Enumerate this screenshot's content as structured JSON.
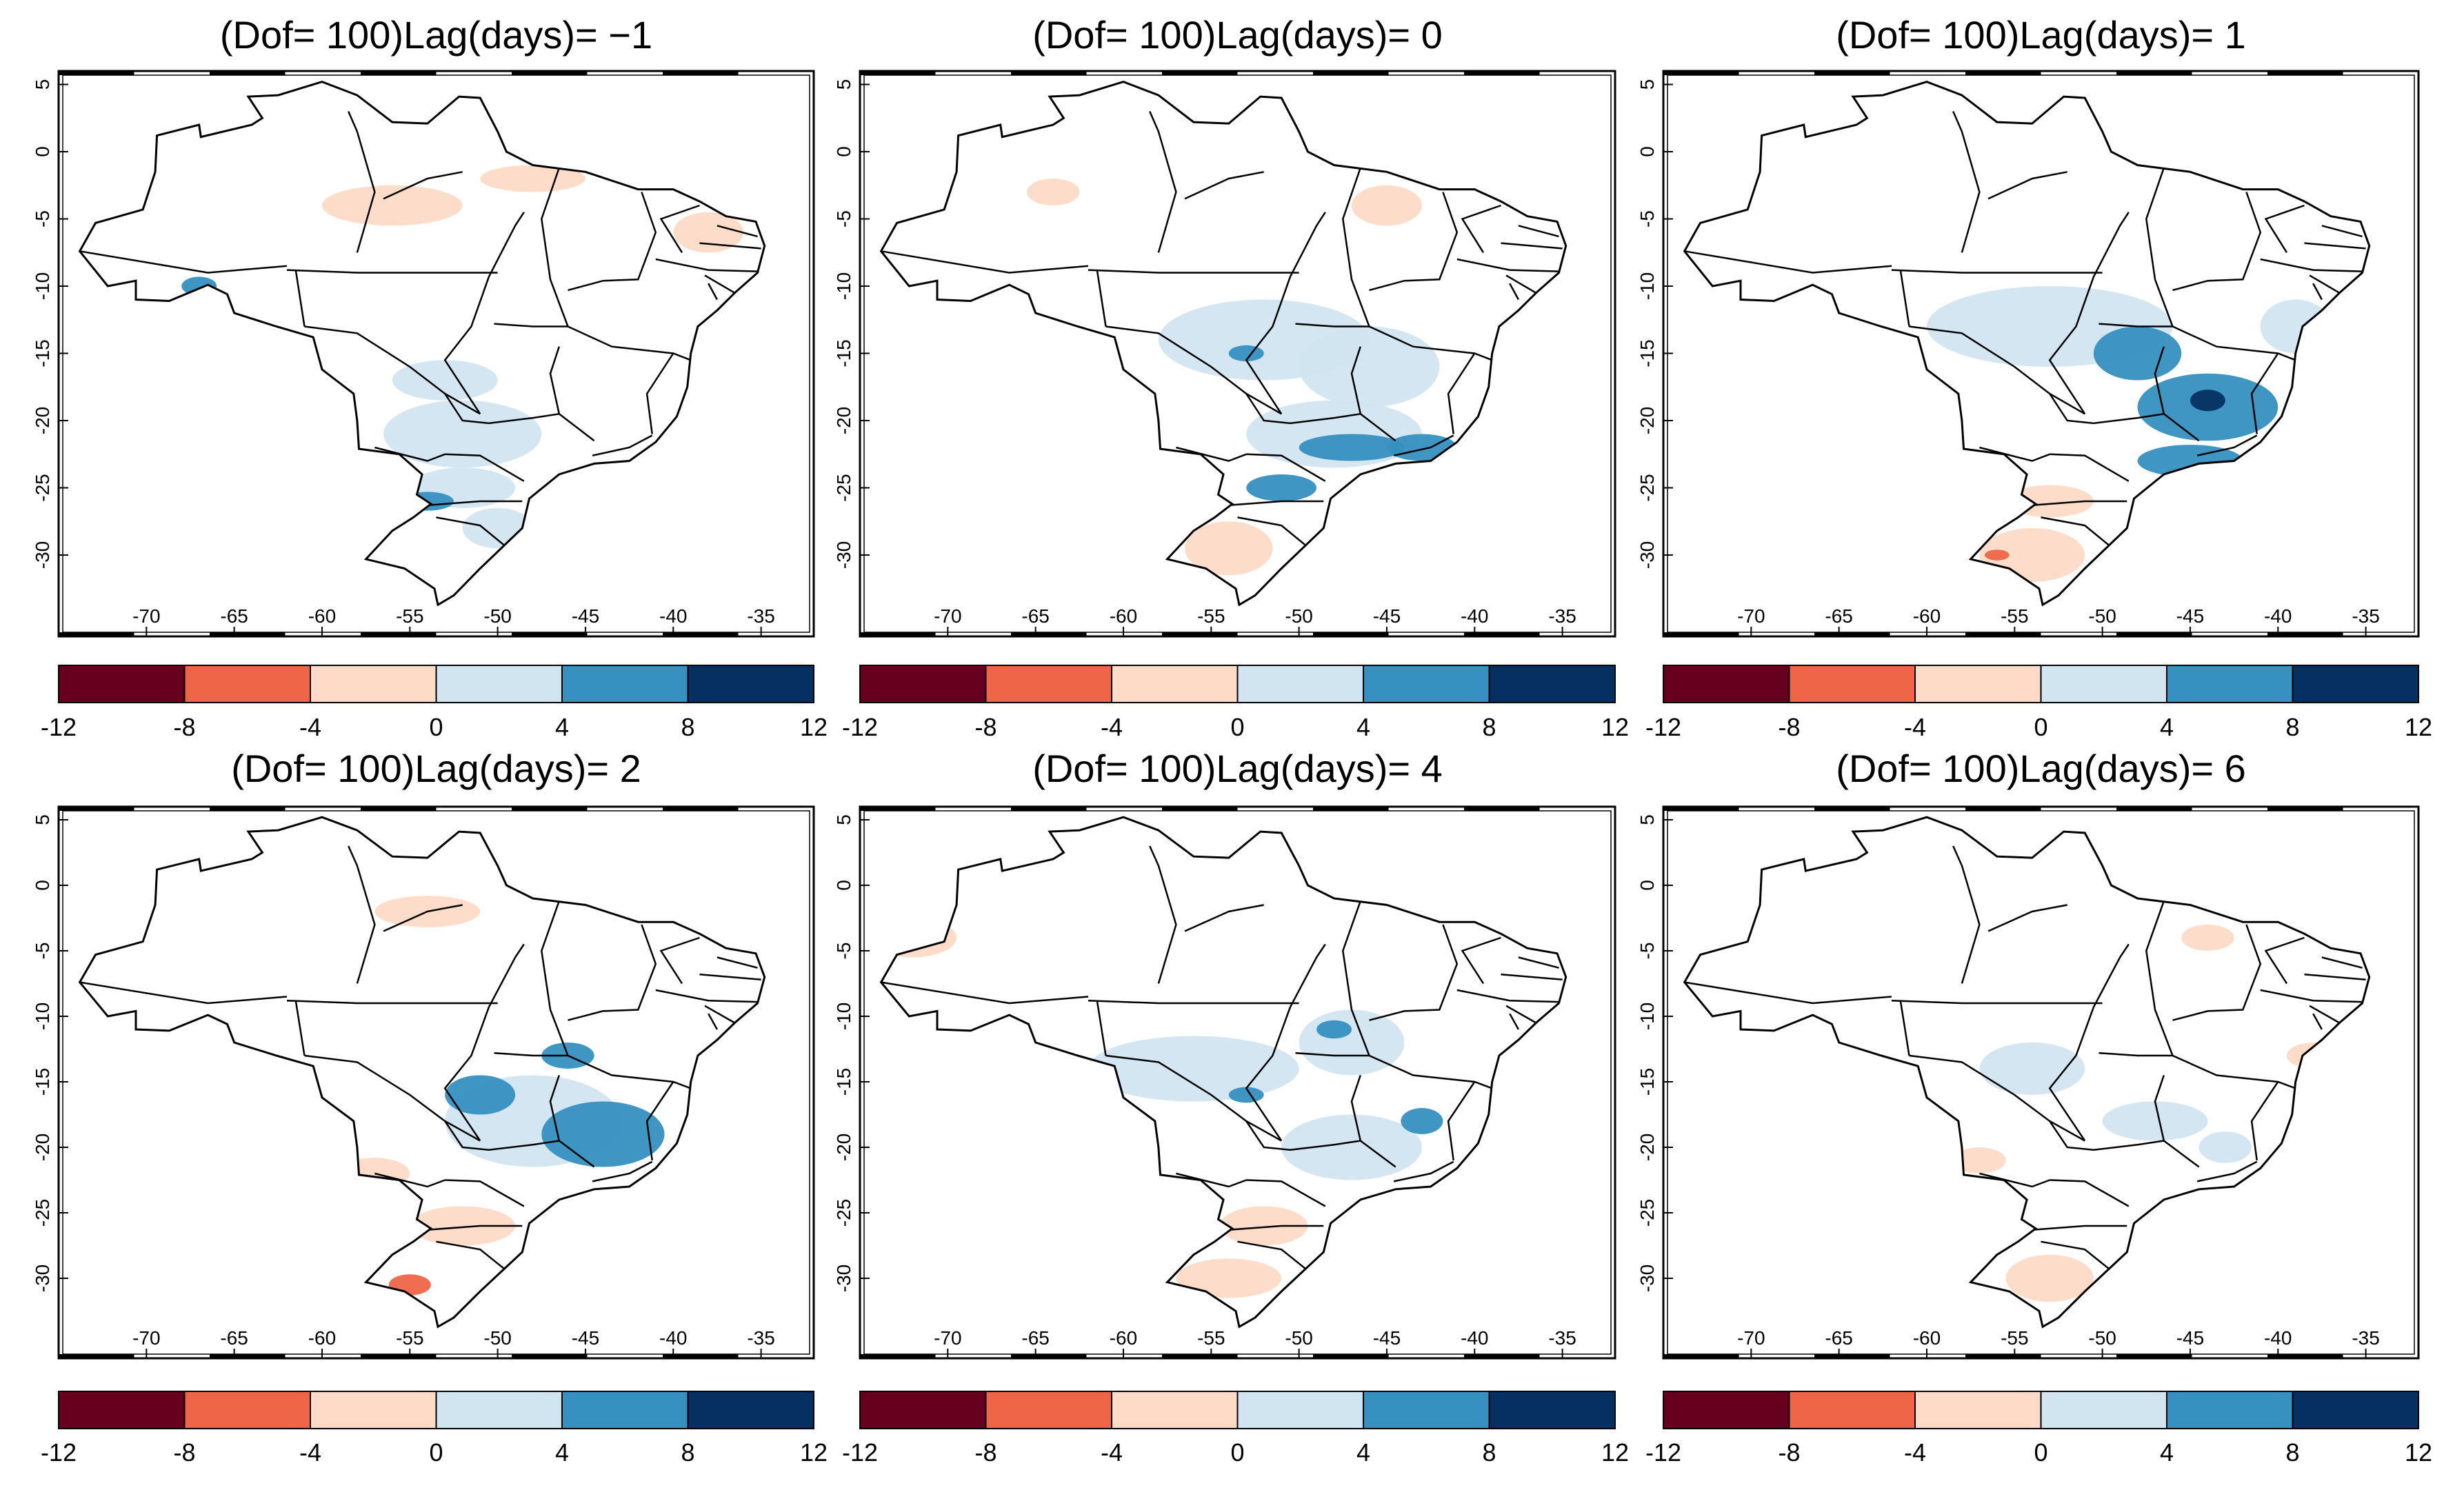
{
  "figure": {
    "panels": [
      {
        "title": "(Dof= 100)Lag(days)= −1",
        "lag": -1
      },
      {
        "title": "(Dof= 100)Lag(days)= 0",
        "lag": 0
      },
      {
        "title": "(Dof= 100)Lag(days)= 1",
        "lag": 1
      },
      {
        "title": "(Dof= 100)Lag(days)= 2",
        "lag": 2
      },
      {
        "title": "(Dof= 100)Lag(days)= 4",
        "lag": 4
      },
      {
        "title": "(Dof= 100)Lag(days)= 6",
        "lag": 6
      }
    ],
    "x_ticks": [
      "-70",
      "-65",
      "-60",
      "-55",
      "-50",
      "-45",
      "-40",
      "-35"
    ],
    "y_ticks": [
      "5",
      "0",
      "-5",
      "-10",
      "-15",
      "-20",
      "-25",
      "-30"
    ],
    "colorbar": {
      "ticks": [
        "-12",
        "-8",
        "-4",
        "0",
        "4",
        "8",
        "12"
      ],
      "colors": [
        "#67001f",
        "#ef6548",
        "#fddbc7",
        "#d1e5f0",
        "#3690c0",
        "#053061"
      ]
    }
  },
  "chart_data": {
    "type": "heatmap",
    "map_region": "Brazil",
    "lon_range": [
      -75,
      -32
    ],
    "lat_range": [
      -34,
      6
    ],
    "color_levels": [
      -12,
      -8,
      -4,
      0,
      4,
      8,
      12
    ],
    "panels": [
      {
        "lag": -1,
        "anomalies": [
          {
            "lon": -56,
            "lat": -4,
            "rx": 4,
            "ry": 1.5,
            "level": -2
          },
          {
            "lon": -48,
            "lat": -2,
            "rx": 3,
            "ry": 1,
            "level": -2
          },
          {
            "lon": -38,
            "lat": -6,
            "rx": 2,
            "ry": 1.5,
            "level": -2
          },
          {
            "lon": -67,
            "lat": -10,
            "rx": 1,
            "ry": 0.7,
            "level": 6
          },
          {
            "lon": -52,
            "lat": -21,
            "rx": 4.5,
            "ry": 2.5,
            "level": 2
          },
          {
            "lon": -53,
            "lat": -17,
            "rx": 3,
            "ry": 1.5,
            "level": 2
          },
          {
            "lon": -52,
            "lat": -25,
            "rx": 3,
            "ry": 1.5,
            "level": 2
          },
          {
            "lon": -54,
            "lat": -26,
            "rx": 1.5,
            "ry": 0.7,
            "level": 6
          },
          {
            "lon": -50,
            "lat": -28,
            "rx": 2,
            "ry": 1.5,
            "level": 2
          }
        ]
      },
      {
        "lag": 0,
        "anomalies": [
          {
            "lon": -45,
            "lat": -4,
            "rx": 2,
            "ry": 1.5,
            "level": -2
          },
          {
            "lon": -64,
            "lat": -3,
            "rx": 1.5,
            "ry": 1,
            "level": -2
          },
          {
            "lon": -52,
            "lat": -14,
            "rx": 6,
            "ry": 3,
            "level": 2
          },
          {
            "lon": -46,
            "lat": -16,
            "rx": 4,
            "ry": 3,
            "level": 2
          },
          {
            "lon": -53,
            "lat": -15,
            "rx": 1,
            "ry": 0.6,
            "level": 6
          },
          {
            "lon": -48,
            "lat": -21,
            "rx": 5,
            "ry": 2.5,
            "level": 2
          },
          {
            "lon": -47,
            "lat": -22,
            "rx": 3,
            "ry": 1,
            "level": 6
          },
          {
            "lon": -43,
            "lat": -22,
            "rx": 2,
            "ry": 1,
            "level": 6
          },
          {
            "lon": -51,
            "lat": -25,
            "rx": 2,
            "ry": 1,
            "level": 6
          },
          {
            "lon": -54,
            "lat": -29.5,
            "rx": 2.5,
            "ry": 2,
            "level": -2
          }
        ]
      },
      {
        "lag": 1,
        "anomalies": [
          {
            "lon": -53,
            "lat": -13,
            "rx": 7,
            "ry": 3,
            "level": 2
          },
          {
            "lon": -48,
            "lat": -15,
            "rx": 2.5,
            "ry": 2,
            "level": 6
          },
          {
            "lon": -44,
            "lat": -19,
            "rx": 4,
            "ry": 2.5,
            "level": 6
          },
          {
            "lon": -44,
            "lat": -18.5,
            "rx": 1,
            "ry": 0.8,
            "level": 10
          },
          {
            "lon": -45,
            "lat": -23,
            "rx": 3,
            "ry": 1.2,
            "level": 6
          },
          {
            "lon": -39,
            "lat": -13,
            "rx": 2,
            "ry": 2,
            "level": 2
          },
          {
            "lon": -53,
            "lat": -26,
            "rx": 2.5,
            "ry": 1.2,
            "level": -2
          },
          {
            "lon": -54,
            "lat": -30,
            "rx": 3,
            "ry": 2,
            "level": -2
          },
          {
            "lon": -56,
            "lat": -30,
            "rx": 0.7,
            "ry": 0.4,
            "level": -6
          }
        ]
      },
      {
        "lag": 2,
        "anomalies": [
          {
            "lon": -48,
            "lat": -18,
            "rx": 5,
            "ry": 3.5,
            "level": 2
          },
          {
            "lon": -51,
            "lat": -16,
            "rx": 2,
            "ry": 1.5,
            "level": 6
          },
          {
            "lon": -44,
            "lat": -19,
            "rx": 3.5,
            "ry": 2.5,
            "level": 6
          },
          {
            "lon": -46,
            "lat": -13,
            "rx": 1.5,
            "ry": 1,
            "level": 6
          },
          {
            "lon": -57,
            "lat": -22,
            "rx": 2,
            "ry": 1.2,
            "level": -2
          },
          {
            "lon": -52,
            "lat": -26,
            "rx": 3,
            "ry": 1.5,
            "level": -2
          },
          {
            "lon": -55,
            "lat": -30.5,
            "rx": 1.2,
            "ry": 0.8,
            "level": -6
          },
          {
            "lon": -54,
            "lat": -2,
            "rx": 3,
            "ry": 1.2,
            "level": -2
          }
        ]
      },
      {
        "lag": 4,
        "anomalies": [
          {
            "lon": -56,
            "lat": -14,
            "rx": 6,
            "ry": 2.5,
            "level": 2
          },
          {
            "lon": -47,
            "lat": -12,
            "rx": 3,
            "ry": 2.5,
            "level": 2
          },
          {
            "lon": -47,
            "lat": -20,
            "rx": 4,
            "ry": 2.5,
            "level": 2
          },
          {
            "lon": -43,
            "lat": -18,
            "rx": 1.2,
            "ry": 1,
            "level": 6
          },
          {
            "lon": -53,
            "lat": -16,
            "rx": 1,
            "ry": 0.6,
            "level": 6
          },
          {
            "lon": -48,
            "lat": -11,
            "rx": 1,
            "ry": 0.7,
            "level": 6
          },
          {
            "lon": -72,
            "lat": -4,
            "rx": 2.5,
            "ry": 1.5,
            "level": -2
          },
          {
            "lon": -52,
            "lat": -26,
            "rx": 2.5,
            "ry": 1.5,
            "level": -2
          },
          {
            "lon": -54,
            "lat": -30,
            "rx": 3,
            "ry": 1.5,
            "level": -2
          }
        ]
      },
      {
        "lag": 6,
        "anomalies": [
          {
            "lon": -54,
            "lat": -14,
            "rx": 3,
            "ry": 2,
            "level": 2
          },
          {
            "lon": -47,
            "lat": -18,
            "rx": 3,
            "ry": 1.5,
            "level": 2
          },
          {
            "lon": -43,
            "lat": -20,
            "rx": 1.5,
            "ry": 1.2,
            "level": 2
          },
          {
            "lon": -38,
            "lat": -13,
            "rx": 1.5,
            "ry": 1,
            "level": -2
          },
          {
            "lon": -44,
            "lat": -4,
            "rx": 1.5,
            "ry": 1,
            "level": -2
          },
          {
            "lon": -57,
            "lat": -21,
            "rx": 1.5,
            "ry": 1,
            "level": -2
          },
          {
            "lon": -53,
            "lat": -30,
            "rx": 2.5,
            "ry": 1.8,
            "level": -2
          }
        ]
      }
    ]
  }
}
